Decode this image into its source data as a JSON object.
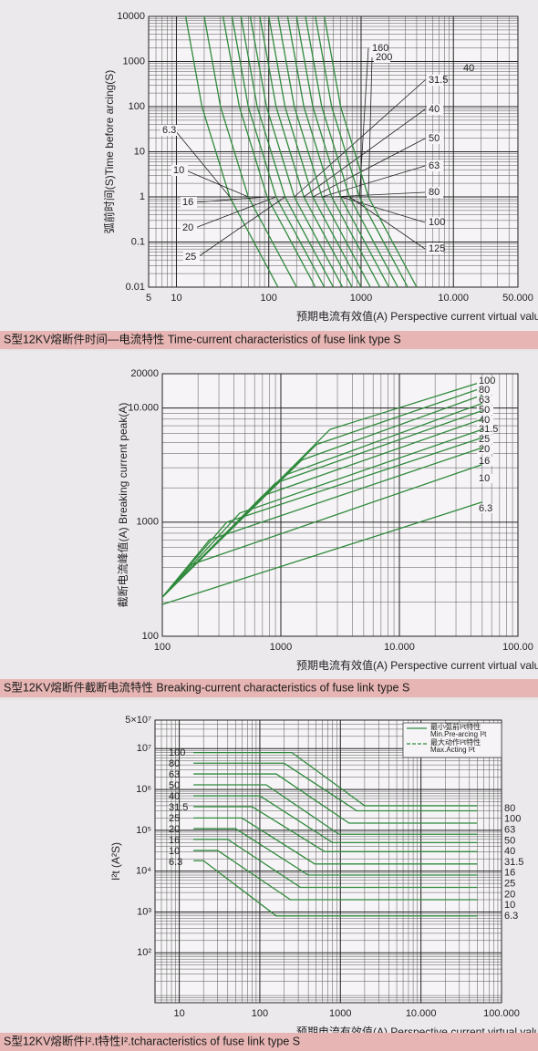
{
  "chart_data": [
    {
      "type": "line",
      "log_x": true,
      "log_y": true,
      "grid": true,
      "color": "#2f8a3c",
      "y_label": "弧前时间(S)Time before arcing(S)",
      "x_label": "预期电流有效值(A)  Perspective current virtual value(A)",
      "caption": "S型12KV熔断件时间—电流特性 Time-current characteristics of fuse link type S",
      "annotations": [
        "40"
      ],
      "xlim": [
        5,
        50000
      ],
      "ylim": [
        0.01,
        10000
      ],
      "xticks": [
        5,
        10,
        100,
        1000,
        {
          "value": 10000,
          "label": "10.000"
        },
        {
          "value": 50000,
          "label": "50.000"
        }
      ],
      "yticks": [
        0.01,
        0.1,
        1,
        10,
        100,
        1000,
        10000
      ],
      "series": [
        {
          "name": "6.3",
          "x": [
            12.6,
            18.9,
            37.8,
            126
          ],
          "values": [
            10000,
            100,
            1,
            0.01
          ]
        },
        {
          "name": "10",
          "x": [
            20,
            30,
            60,
            200
          ],
          "values": [
            10000,
            100,
            1,
            0.01
          ]
        },
        {
          "name": "16",
          "x": [
            32,
            48,
            96,
            320
          ],
          "values": [
            10000,
            100,
            1,
            0.01
          ]
        },
        {
          "name": "20",
          "x": [
            40,
            60,
            120,
            400
          ],
          "values": [
            10000,
            100,
            1,
            0.01
          ]
        },
        {
          "name": "25",
          "x": [
            50,
            75,
            150,
            500
          ],
          "values": [
            10000,
            100,
            1,
            0.01
          ]
        },
        {
          "name": "31.5",
          "x": [
            63,
            94.5,
            189,
            630
          ],
          "values": [
            10000,
            100,
            1,
            0.01
          ]
        },
        {
          "name": "40",
          "x": [
            80,
            120,
            240,
            800
          ],
          "values": [
            10000,
            100,
            1,
            0.01
          ]
        },
        {
          "name": "50",
          "x": [
            100,
            150,
            300,
            1000
          ],
          "values": [
            10000,
            100,
            1,
            0.01
          ]
        },
        {
          "name": "63",
          "x": [
            126,
            189,
            378,
            1260
          ],
          "values": [
            10000,
            100,
            1,
            0.01
          ]
        },
        {
          "name": "80",
          "x": [
            160,
            240,
            480,
            1600
          ],
          "values": [
            10000,
            100,
            1,
            0.01
          ]
        },
        {
          "name": "100",
          "x": [
            200,
            300,
            600,
            2000
          ],
          "values": [
            10000,
            100,
            1,
            0.01
          ]
        },
        {
          "name": "125",
          "x": [
            250,
            375,
            750,
            2500
          ],
          "values": [
            10000,
            100,
            1,
            0.01
          ]
        },
        {
          "name": "160",
          "x": [
            320,
            480,
            960,
            3200
          ],
          "values": [
            10000,
            100,
            1,
            0.01
          ]
        },
        {
          "name": "200",
          "x": [
            400,
            600,
            1200,
            4000
          ],
          "values": [
            10000,
            100,
            1,
            0.01
          ]
        }
      ]
    },
    {
      "type": "line",
      "log_x": true,
      "log_y": true,
      "grid": true,
      "color": "#2f8a3c",
      "y_label": "截断电流峰值(A) Breaking current peak(A)",
      "x_label": "预期电流有效值(A)  Perspective current virtual value(A)",
      "caption": "S型12KV熔断件截断电流特性 Breaking-current characteristics of fuse link type S",
      "xlim": [
        100,
        100000
      ],
      "ylim": [
        100,
        20000
      ],
      "xticks": [
        100,
        1000,
        {
          "value": 10000,
          "label": "10.000"
        },
        {
          "value": 100000,
          "label": "100.00"
        }
      ],
      "yticks": [
        100,
        1000,
        {
          "value": 10000,
          "label": "10.000"
        },
        20000
      ],
      "series": [
        {
          "name": "100",
          "x": [
            100,
            2600,
            50000
          ],
          "values": [
            220,
            6500,
            17000
          ]
        },
        {
          "name": "80",
          "x": [
            100,
            2000,
            50000
          ],
          "values": [
            220,
            4800,
            15000
          ]
        },
        {
          "name": "63",
          "x": [
            100,
            1500,
            50000
          ],
          "values": [
            220,
            3500,
            13000
          ]
        },
        {
          "name": "50",
          "x": [
            100,
            1100,
            50000
          ],
          "values": [
            220,
            2600,
            11000
          ]
        },
        {
          "name": "40",
          "x": [
            100,
            900,
            50000
          ],
          "values": [
            220,
            2200,
            9500
          ]
        },
        {
          "name": "31.5",
          "x": [
            100,
            700,
            50000
          ],
          "values": [
            220,
            1700,
            8000
          ]
        },
        {
          "name": "25",
          "x": [
            100,
            450,
            50000
          ],
          "values": [
            220,
            1200,
            6500
          ]
        },
        {
          "name": "20",
          "x": [
            100,
            350,
            50000
          ],
          "values": [
            220,
            1000,
            5500
          ]
        },
        {
          "name": "16",
          "x": [
            100,
            250,
            50000
          ],
          "values": [
            220,
            700,
            4500
          ]
        },
        {
          "name": "10",
          "x": [
            100,
            170,
            50000
          ],
          "values": [
            220,
            420,
            3200
          ]
        },
        {
          "name": "6.3",
          "x": [
            100,
            50000
          ],
          "values": [
            190,
            1500
          ]
        }
      ]
    },
    {
      "type": "line",
      "log_x": true,
      "log_y": true,
      "grid": true,
      "color": "#2f8a3c",
      "y_label": "I²t (A²S)",
      "x_label": "预期电流有效值(A)  Perspective current virtual value(A)",
      "caption": "S型12KV熔断件I².t特性I².tcharacteristics of fuse link type S",
      "legend": [
        {
          "zh": "最小弧前I²t特性",
          "en": "Min.Pre-arcing I²t"
        },
        {
          "zh": "最大动作I²t特性",
          "en": "Max.Acting I²t"
        }
      ],
      "right_labels": [
        "80",
        "100",
        "63",
        "50",
        "40",
        "31.5",
        "16",
        "25",
        "20",
        "10",
        "6.3"
      ],
      "xlim": [
        5,
        100000
      ],
      "ylim": [
        6,
        50000000
      ],
      "xticks": [
        10,
        100,
        1000,
        {
          "value": 10000,
          "label": "10.000"
        },
        {
          "value": 100000,
          "label": "100.000"
        }
      ],
      "yticks": [
        {
          "value": 100,
          "label": "10²"
        },
        {
          "value": 1000,
          "label": "10³"
        },
        {
          "value": 10000,
          "label": "10⁴"
        },
        {
          "value": 100000,
          "label": "10⁵"
        },
        {
          "value": 1000000,
          "label": "10⁶"
        },
        {
          "value": 10000000,
          "label": "10⁷"
        },
        {
          "value": 50000000,
          "label": "5×10⁷"
        }
      ],
      "series": [
        {
          "name": "100",
          "x": [
            15,
            250,
            2000,
            50000
          ],
          "values": [
            8000000,
            8000000,
            400000,
            400000
          ]
        },
        {
          "name": "80",
          "x": [
            15,
            200,
            1600,
            50000
          ],
          "values": [
            4400000,
            4400000,
            300000,
            300000
          ]
        },
        {
          "name": "63",
          "x": [
            15,
            160,
            1280,
            50000
          ],
          "values": [
            2400000,
            2400000,
            150000,
            150000
          ]
        },
        {
          "name": "50",
          "x": [
            15,
            120,
            960,
            50000
          ],
          "values": [
            1300000,
            1300000,
            80000,
            80000
          ]
        },
        {
          "name": "40",
          "x": [
            15,
            100,
            800,
            50000
          ],
          "values": [
            700000,
            700000,
            50000,
            50000
          ]
        },
        {
          "name": "31.5",
          "x": [
            15,
            80,
            640,
            50000
          ],
          "values": [
            380000,
            380000,
            30000,
            30000
          ]
        },
        {
          "name": "25",
          "x": [
            15,
            60,
            480,
            50000
          ],
          "values": [
            200000,
            200000,
            15000,
            15000
          ]
        },
        {
          "name": "20",
          "x": [
            15,
            50,
            400,
            50000
          ],
          "values": [
            110000,
            110000,
            8000,
            8000
          ]
        },
        {
          "name": "16",
          "x": [
            15,
            40,
            320,
            50000
          ],
          "values": [
            60000,
            60000,
            4000,
            4000
          ]
        },
        {
          "name": "10",
          "x": [
            15,
            30,
            240,
            50000
          ],
          "values": [
            32000,
            32000,
            2000,
            2000
          ]
        },
        {
          "name": "6.3",
          "x": [
            15,
            20,
            160,
            50000
          ],
          "values": [
            18000,
            18000,
            800,
            800
          ]
        }
      ]
    }
  ]
}
